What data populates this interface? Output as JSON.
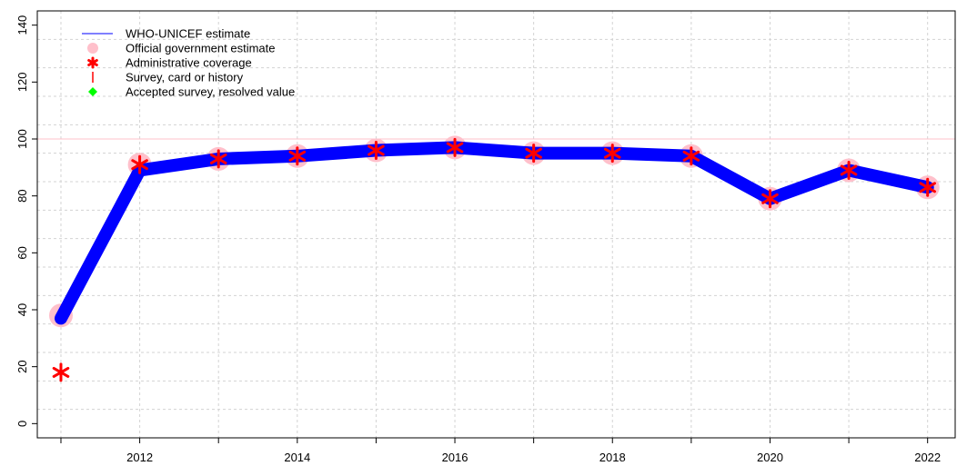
{
  "chart_data": {
    "type": "line",
    "title": "",
    "xlabel": "",
    "ylabel": "",
    "xlim": [
      2010.7,
      2022.35
    ],
    "ylim": [
      -5,
      145
    ],
    "x_ticks": [
      2012,
      2014,
      2016,
      2018,
      2020,
      2022
    ],
    "y_ticks": [
      0,
      20,
      40,
      60,
      80,
      100,
      120,
      140
    ],
    "grid": true,
    "reference_line": 100,
    "legend_position": "top-left",
    "legend": [
      {
        "label": "WHO-UNICEF estimate",
        "symbol": "line",
        "color": "#0000ff"
      },
      {
        "label": "Official government estimate",
        "symbol": "circle",
        "color": "#ffc0cb"
      },
      {
        "label": "Administrative coverage",
        "symbol": "asterisk",
        "color": "#ff0000"
      },
      {
        "label": "Survey, card or history",
        "symbol": "bar",
        "color": "#ff0000"
      },
      {
        "label": "Accepted survey, resolved value",
        "symbol": "diamond",
        "color": "#00ff00"
      }
    ],
    "x": [
      2011,
      2012,
      2013,
      2014,
      2015,
      2016,
      2017,
      2018,
      2019,
      2020,
      2021,
      2022
    ],
    "series": [
      {
        "name": "WHO-UNICEF estimate",
        "color": "#0000ff",
        "values": [
          37,
          89,
          93,
          94,
          96,
          97,
          95,
          95,
          94,
          79,
          89,
          83
        ]
      },
      {
        "name": "Official government estimate",
        "color": "#ffc0cb",
        "values": [
          38,
          91,
          93,
          94,
          96,
          97,
          95,
          95,
          94,
          79,
          89,
          83
        ]
      },
      {
        "name": "Administrative coverage",
        "color": "#ff0000",
        "values": [
          18,
          91,
          93,
          94,
          96,
          97,
          95,
          95,
          94,
          79,
          89,
          83
        ]
      }
    ]
  }
}
